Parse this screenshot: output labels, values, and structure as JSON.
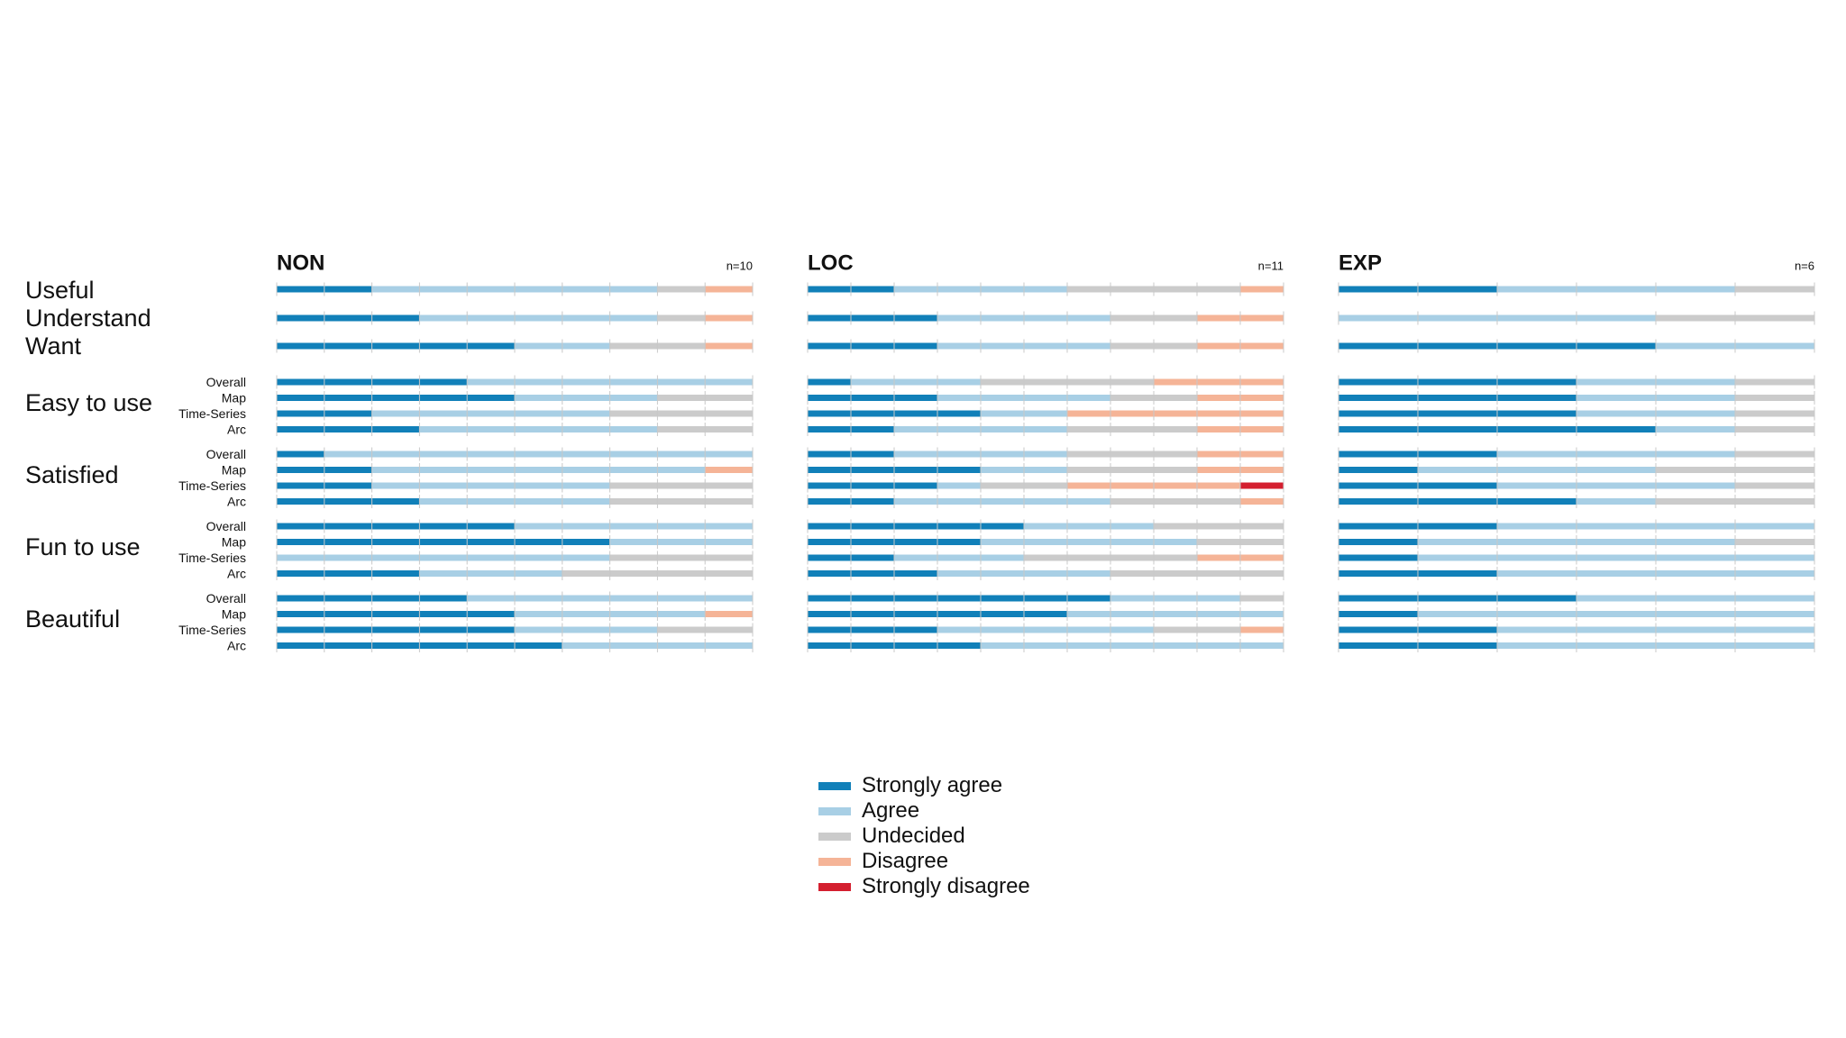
{
  "chart_data": {
    "type": "bar",
    "subtype": "stacked-horizontal-likert",
    "panels": [
      {
        "name": "NON",
        "n_label": "n=10",
        "n": 10
      },
      {
        "name": "LOC",
        "n_label": "n=11",
        "n": 11
      },
      {
        "name": "EXP",
        "n_label": "n=6",
        "n": 6
      }
    ],
    "categories": [
      "Strongly agree",
      "Agree",
      "Undecided",
      "Disagree",
      "Strongly disagree"
    ],
    "colors": [
      "#1180b9",
      "#a8cfe5",
      "#cbcbcb",
      "#f5b497",
      "#d41f2f"
    ],
    "groups": [
      {
        "label": "Useful",
        "rows": [
          {
            "label": ""
          }
        ]
      },
      {
        "label": "Understand",
        "rows": [
          {
            "label": ""
          }
        ]
      },
      {
        "label": "Want",
        "rows": [
          {
            "label": ""
          }
        ]
      },
      {
        "label": "Easy to use",
        "rows": [
          {
            "label": "Overall"
          },
          {
            "label": "Map"
          },
          {
            "label": "Time-Series"
          },
          {
            "label": "Arc"
          }
        ]
      },
      {
        "label": "Satisfied",
        "rows": [
          {
            "label": "Overall"
          },
          {
            "label": "Map"
          },
          {
            "label": "Time-Series"
          },
          {
            "label": "Arc"
          }
        ]
      },
      {
        "label": "Fun to use",
        "rows": [
          {
            "label": "Overall"
          },
          {
            "label": "Map"
          },
          {
            "label": "Time-Series"
          },
          {
            "label": "Arc"
          }
        ]
      },
      {
        "label": "Beautiful",
        "rows": [
          {
            "label": "Overall"
          },
          {
            "label": "Map"
          },
          {
            "label": "Time-Series"
          },
          {
            "label": "Arc"
          }
        ]
      }
    ],
    "counts": {
      "NON": [
        [
          2,
          6,
          1,
          1,
          0
        ],
        [
          3,
          5,
          1,
          1,
          0
        ],
        [
          5,
          2,
          2,
          1,
          0
        ],
        [
          4,
          6,
          0,
          0,
          0
        ],
        [
          5,
          3,
          2,
          0,
          0
        ],
        [
          2,
          5,
          3,
          0,
          0
        ],
        [
          3,
          5,
          2,
          0,
          0
        ],
        [
          1,
          9,
          0,
          0,
          0
        ],
        [
          2,
          7,
          0,
          1,
          0
        ],
        [
          2,
          5,
          3,
          0,
          0
        ],
        [
          3,
          4,
          3,
          0,
          0
        ],
        [
          5,
          5,
          0,
          0,
          0
        ],
        [
          7,
          3,
          0,
          0,
          0
        ],
        [
          0,
          7,
          3,
          0,
          0
        ],
        [
          3,
          3,
          4,
          0,
          0
        ],
        [
          4,
          6,
          0,
          0,
          0
        ],
        [
          5,
          4,
          0,
          1,
          0
        ],
        [
          5,
          3,
          2,
          0,
          0
        ],
        [
          6,
          4,
          0,
          0,
          0
        ]
      ],
      "LOC": [
        [
          2,
          4,
          4,
          1,
          0
        ],
        [
          3,
          4,
          2,
          2,
          0
        ],
        [
          3,
          4,
          2,
          2,
          0
        ],
        [
          1,
          3,
          4,
          3,
          0
        ],
        [
          3,
          4,
          2,
          2,
          0
        ],
        [
          4,
          2,
          0,
          5,
          0
        ],
        [
          2,
          4,
          3,
          2,
          0
        ],
        [
          2,
          4,
          3,
          2,
          0
        ],
        [
          4,
          2,
          3,
          2,
          0
        ],
        [
          3,
          1,
          2,
          4,
          1
        ],
        [
          2,
          5,
          3,
          1,
          0
        ],
        [
          5,
          3,
          3,
          0,
          0
        ],
        [
          4,
          5,
          2,
          0,
          0
        ],
        [
          2,
          3,
          4,
          2,
          0
        ],
        [
          3,
          4,
          4,
          0,
          0
        ],
        [
          7,
          3,
          1,
          0,
          0
        ],
        [
          6,
          5,
          0,
          0,
          0
        ],
        [
          3,
          5,
          2,
          1,
          0
        ],
        [
          4,
          7,
          0,
          0,
          0
        ]
      ],
      "EXP": [
        [
          2,
          3,
          1,
          0,
          0
        ],
        [
          0,
          4,
          2,
          0,
          0
        ],
        [
          4,
          2,
          0,
          0,
          0
        ],
        [
          3,
          2,
          1,
          0,
          0
        ],
        [
          3,
          2,
          1,
          0,
          0
        ],
        [
          3,
          2,
          1,
          0,
          0
        ],
        [
          4,
          1,
          1,
          0,
          0
        ],
        [
          2,
          3,
          1,
          0,
          0
        ],
        [
          1,
          3,
          2,
          0,
          0
        ],
        [
          2,
          3,
          1,
          0,
          0
        ],
        [
          3,
          1,
          2,
          0,
          0
        ],
        [
          2,
          4,
          0,
          0,
          0
        ],
        [
          1,
          4,
          1,
          0,
          0
        ],
        [
          1,
          5,
          0,
          0,
          0
        ],
        [
          2,
          4,
          0,
          0,
          0
        ],
        [
          3,
          3,
          0,
          0,
          0
        ],
        [
          1,
          5,
          0,
          0,
          0
        ],
        [
          2,
          4,
          0,
          0,
          0
        ],
        [
          2,
          4,
          0,
          0,
          0
        ]
      ]
    },
    "xlim": [
      0,
      1
    ],
    "legend_position": "bottom-center"
  }
}
